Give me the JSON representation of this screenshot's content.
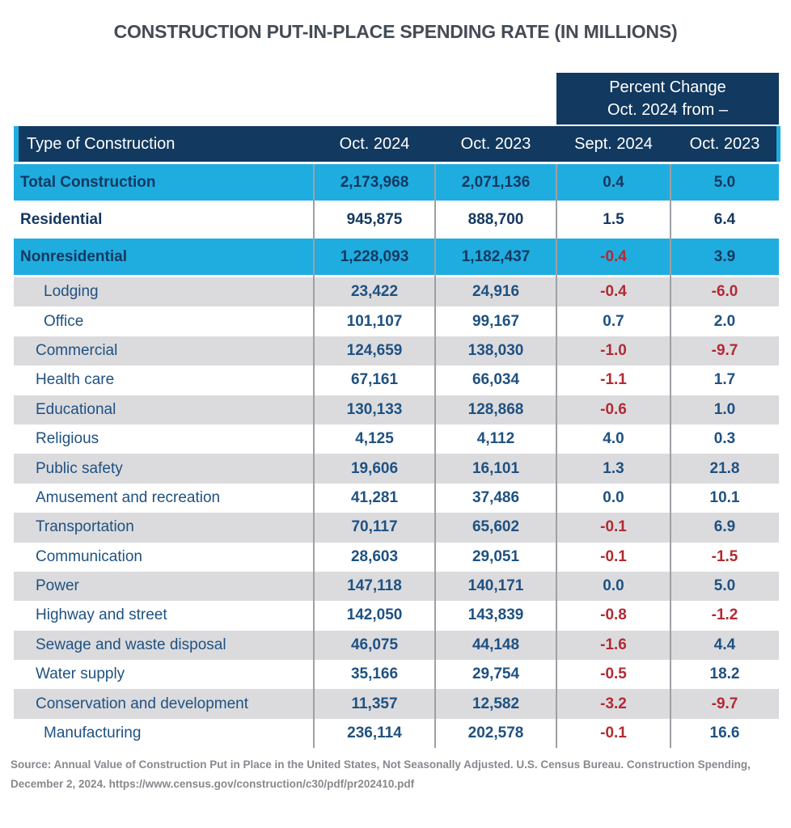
{
  "chart_data": {
    "type": "table",
    "title": "CONSTRUCTION PUT-IN-PLACE SPENDING RATE (IN MILLIONS)",
    "group_header": {
      "line1": "Percent Change",
      "line2": "Oct. 2024 from –",
      "spans_columns": [
        "Sept. 2024",
        "Oct. 2023"
      ]
    },
    "columns": [
      "Type of Construction",
      "Oct. 2024",
      "Oct. 2023",
      "Sept. 2024",
      "Oct. 2023"
    ],
    "rows": [
      {
        "label": "Total Construction",
        "oct_2024": "2,173,968",
        "oct_2023": "2,071,136",
        "chg_sept_2024": "0.4",
        "chg_oct_2023": "5.0",
        "emphasis": "cyan-bold",
        "indent": 0
      },
      {
        "label": "Residential",
        "oct_2024": "945,875",
        "oct_2023": "888,700",
        "chg_sept_2024": "1.5",
        "chg_oct_2023": "6.4",
        "emphasis": "white-bold",
        "indent": 0
      },
      {
        "label": "Nonresidential",
        "oct_2024": "1,228,093",
        "oct_2023": "1,182,437",
        "chg_sept_2024": "-0.4",
        "chg_oct_2023": "3.9",
        "emphasis": "cyan-bold",
        "indent": 0
      },
      {
        "label": "Lodging",
        "oct_2024": "23,422",
        "oct_2023": "24,916",
        "chg_sept_2024": "-0.4",
        "chg_oct_2023": "-6.0",
        "emphasis": "gray",
        "indent": 2
      },
      {
        "label": "Office",
        "oct_2024": "101,107",
        "oct_2023": "99,167",
        "chg_sept_2024": "0.7",
        "chg_oct_2023": "2.0",
        "emphasis": "white",
        "indent": 2
      },
      {
        "label": "Commercial",
        "oct_2024": "124,659",
        "oct_2023": "138,030",
        "chg_sept_2024": "-1.0",
        "chg_oct_2023": "-9.7",
        "emphasis": "gray",
        "indent": 1
      },
      {
        "label": "Health care",
        "oct_2024": "67,161",
        "oct_2023": "66,034",
        "chg_sept_2024": "-1.1",
        "chg_oct_2023": "1.7",
        "emphasis": "white",
        "indent": 1
      },
      {
        "label": "Educational",
        "oct_2024": "130,133",
        "oct_2023": "128,868",
        "chg_sept_2024": "-0.6",
        "chg_oct_2023": "1.0",
        "emphasis": "gray",
        "indent": 1
      },
      {
        "label": "Religious",
        "oct_2024": "4,125",
        "oct_2023": "4,112",
        "chg_sept_2024": "4.0",
        "chg_oct_2023": "0.3",
        "emphasis": "white",
        "indent": 1
      },
      {
        "label": "Public safety",
        "oct_2024": "19,606",
        "oct_2023": "16,101",
        "chg_sept_2024": "1.3",
        "chg_oct_2023": "21.8",
        "emphasis": "gray",
        "indent": 1
      },
      {
        "label": "Amusement and recreation",
        "oct_2024": "41,281",
        "oct_2023": "37,486",
        "chg_sept_2024": "0.0",
        "chg_oct_2023": "10.1",
        "emphasis": "white",
        "indent": 1
      },
      {
        "label": "Transportation",
        "oct_2024": "70,117",
        "oct_2023": "65,602",
        "chg_sept_2024": "-0.1",
        "chg_oct_2023": "6.9",
        "emphasis": "gray",
        "indent": 1
      },
      {
        "label": "Communication",
        "oct_2024": "28,603",
        "oct_2023": "29,051",
        "chg_sept_2024": "-0.1",
        "chg_oct_2023": "-1.5",
        "emphasis": "white",
        "indent": 1
      },
      {
        "label": "Power",
        "oct_2024": "147,118",
        "oct_2023": "140,171",
        "chg_sept_2024": "0.0",
        "chg_oct_2023": "5.0",
        "emphasis": "gray",
        "indent": 1
      },
      {
        "label": "Highway and street",
        "oct_2024": "142,050",
        "oct_2023": "143,839",
        "chg_sept_2024": "-0.8",
        "chg_oct_2023": "-1.2",
        "emphasis": "white",
        "indent": 1
      },
      {
        "label": "Sewage and waste disposal",
        "oct_2024": "46,075",
        "oct_2023": "44,148",
        "chg_sept_2024": "-1.6",
        "chg_oct_2023": "4.4",
        "emphasis": "gray",
        "indent": 1
      },
      {
        "label": "Water supply",
        "oct_2024": "35,166",
        "oct_2023": "29,754",
        "chg_sept_2024": "-0.5",
        "chg_oct_2023": "18.2",
        "emphasis": "white",
        "indent": 1
      },
      {
        "label": "Conservation and development",
        "oct_2024": "11,357",
        "oct_2023": "12,582",
        "chg_sept_2024": "-3.2",
        "chg_oct_2023": "-9.7",
        "emphasis": "gray",
        "indent": 1
      },
      {
        "label": "Manufacturing",
        "oct_2024": "236,114",
        "oct_2023": "202,578",
        "chg_sept_2024": "-0.1",
        "chg_oct_2023": "16.6",
        "emphasis": "white",
        "indent": 2
      }
    ],
    "layout": {
      "grid": "horizontal-row-banding",
      "legend": "none",
      "negative_value_color": "#B22A32",
      "positive_value_color": "#1F5181"
    }
  },
  "source": {
    "line1": "Source: Annual Value of Construction Put in Place in the United States, Not Seasonally Adjusted. U.S. Census Bureau. Construction Spending,",
    "line2_prefix": "December 2, 2024. ",
    "url": "https://www.census.gov/construction/c30/pdf/pr202410.pdf"
  },
  "colors": {
    "header_navy": "#12395F",
    "highlight_cyan": "#1FADE0",
    "body_blue": "#1F5181",
    "bold_navy": "#14385F",
    "negative_red": "#B22A32",
    "row_gray": "#DBDBDE",
    "separator_gray": "#9DA0A4",
    "title_gray": "#434C56",
    "source_gray": "#87898E"
  }
}
